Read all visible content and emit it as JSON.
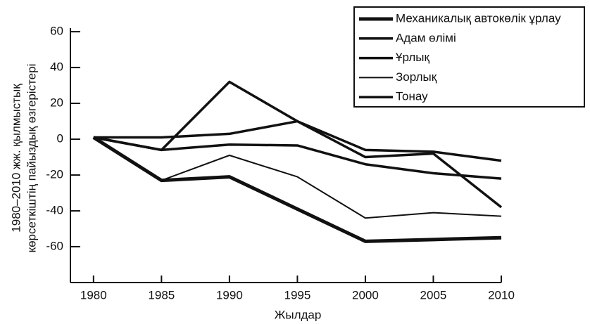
{
  "chart_data": {
    "type": "line",
    "x_label": "Жылдар",
    "y_label": [
      "1980–2010 жж. қылмыстық",
      "көрсеткіштің пайыздық өзгерістері"
    ],
    "x": [
      1980,
      1985,
      1990,
      1995,
      2000,
      2005,
      2010
    ],
    "xlim": [
      1978.3,
      2010
    ],
    "xticks": [
      1980,
      1985,
      1990,
      1995,
      2000,
      2005,
      2010
    ],
    "ylim": [
      -80,
      62
    ],
    "yticks": [
      60,
      40,
      20,
      0,
      -20,
      -40,
      -60
    ],
    "legend": "upper right",
    "series": [
      {
        "name": "Механикалық автокөлік ұрлау",
        "color": "#111111",
        "width": 5,
        "values": [
          1,
          -23,
          -21,
          -39,
          -57,
          -56,
          -55
        ]
      },
      {
        "name": "Адам өлімі",
        "color": "#111111",
        "width": 3.5,
        "values": [
          1,
          -6,
          32,
          10,
          -10,
          -8,
          -38
        ]
      },
      {
        "name": "Ұрлық",
        "color": "#111111",
        "width": 3.5,
        "values": [
          1,
          -6,
          -3,
          -3.5,
          -14,
          -19,
          -22
        ]
      },
      {
        "name": "Зорлық",
        "color": "#111111",
        "width": 2,
        "values": [
          1,
          -23,
          -9,
          -21,
          -44,
          -41,
          -43
        ]
      },
      {
        "name": "Тонау",
        "color": "#111111",
        "width": 3.5,
        "values": [
          1,
          1,
          3,
          10,
          -6,
          -7,
          -12
        ]
      }
    ]
  }
}
